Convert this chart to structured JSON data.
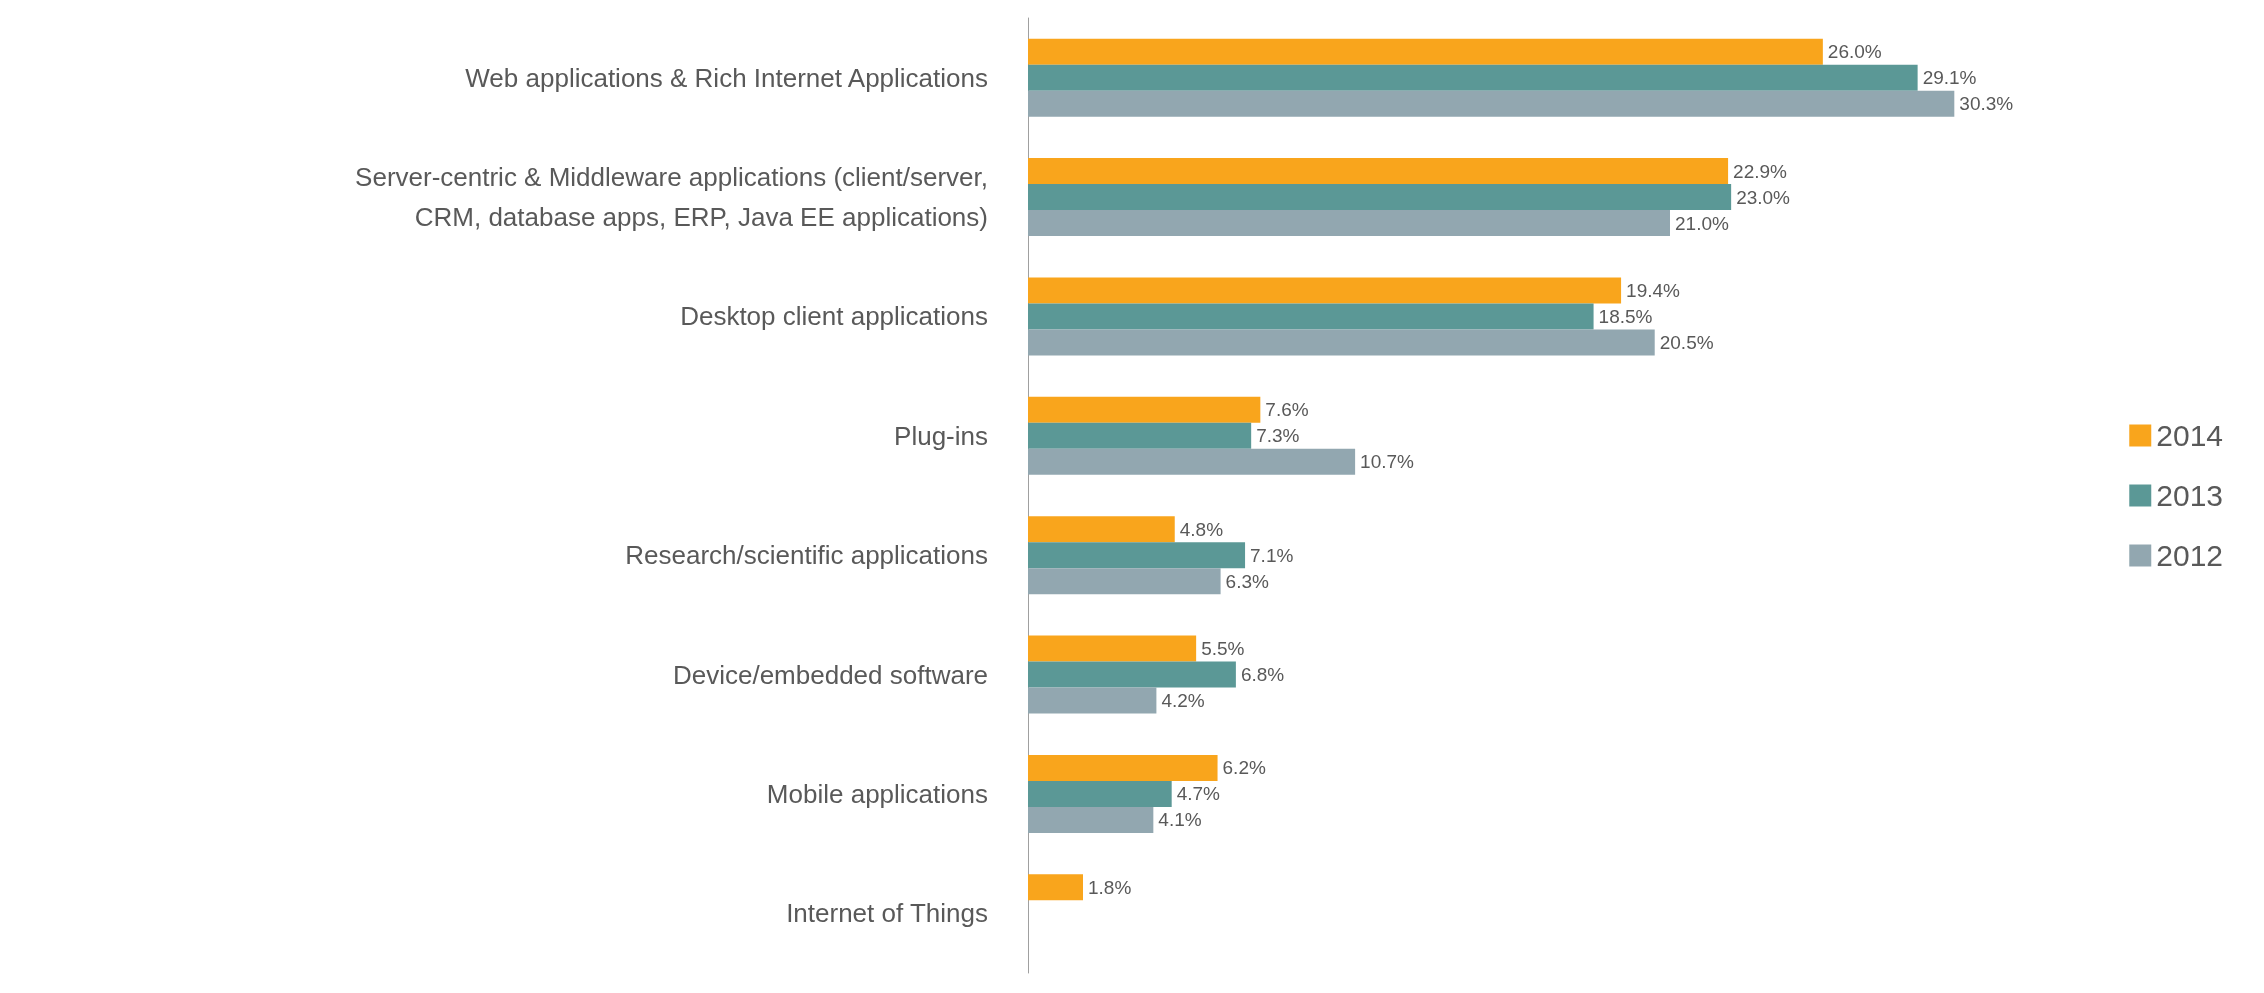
{
  "chart_data": {
    "type": "bar",
    "orientation": "horizontal",
    "categories": [
      "Web applications & Rich Internet Applications",
      "Server-centric & Middleware applications (client/server,\nCRM, database apps, ERP, Java EE applications)",
      "Desktop client applications",
      "Plug-ins",
      "Research/scientific applications",
      "Device/embedded software",
      "Mobile applications",
      "Internet of Things"
    ],
    "series": [
      {
        "name": "2014",
        "color": "#f9a51c",
        "values": [
          26.0,
          22.9,
          19.4,
          7.6,
          4.8,
          5.5,
          6.2,
          1.8
        ],
        "value_labels": [
          "26.0%",
          "22.9%",
          "19.4%",
          "7.6%",
          "4.8%",
          "5.5%",
          "6.2%",
          "1.8%"
        ]
      },
      {
        "name": "2013",
        "color": "#5b9896",
        "values": [
          29.1,
          23.0,
          18.5,
          7.3,
          7.1,
          6.8,
          4.7,
          null
        ],
        "value_labels": [
          "29.1%",
          "23.0%",
          "18.5%",
          "7.3%",
          "7.1%",
          "6.8%",
          "4.7%",
          null
        ]
      },
      {
        "name": "2012",
        "color": "#92a7b0",
        "values": [
          30.3,
          21.0,
          20.5,
          10.7,
          6.3,
          4.2,
          4.1,
          null
        ],
        "value_labels": [
          "30.3%",
          "21.0%",
          "20.5%",
          "10.7%",
          "6.3%",
          "4.2%",
          "4.1%",
          null
        ]
      }
    ],
    "legend": "right",
    "grid": false
  }
}
